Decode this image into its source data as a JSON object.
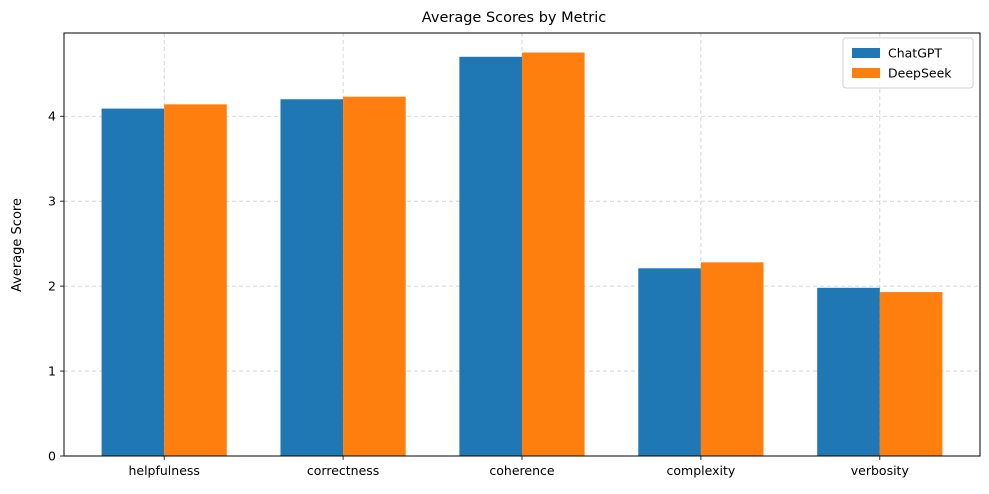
{
  "chart_data": {
    "type": "bar",
    "title": "Average Scores by Metric",
    "xlabel": "",
    "ylabel": "Average Score",
    "categories": [
      "helpfulness",
      "correctness",
      "coherence",
      "complexity",
      "verbosity"
    ],
    "series": [
      {
        "name": "ChatGPT",
        "color": "#1f77b4",
        "values": [
          4.09,
          4.2,
          4.7,
          2.21,
          1.98
        ]
      },
      {
        "name": "DeepSeek",
        "color": "#ff7f0e",
        "values": [
          4.14,
          4.23,
          4.75,
          2.28,
          1.93
        ]
      }
    ],
    "ylim": [
      0,
      4.98
    ],
    "yticks": [
      "0",
      "1",
      "2",
      "3",
      "4"
    ],
    "grid": true,
    "legend_position": "top-right"
  }
}
